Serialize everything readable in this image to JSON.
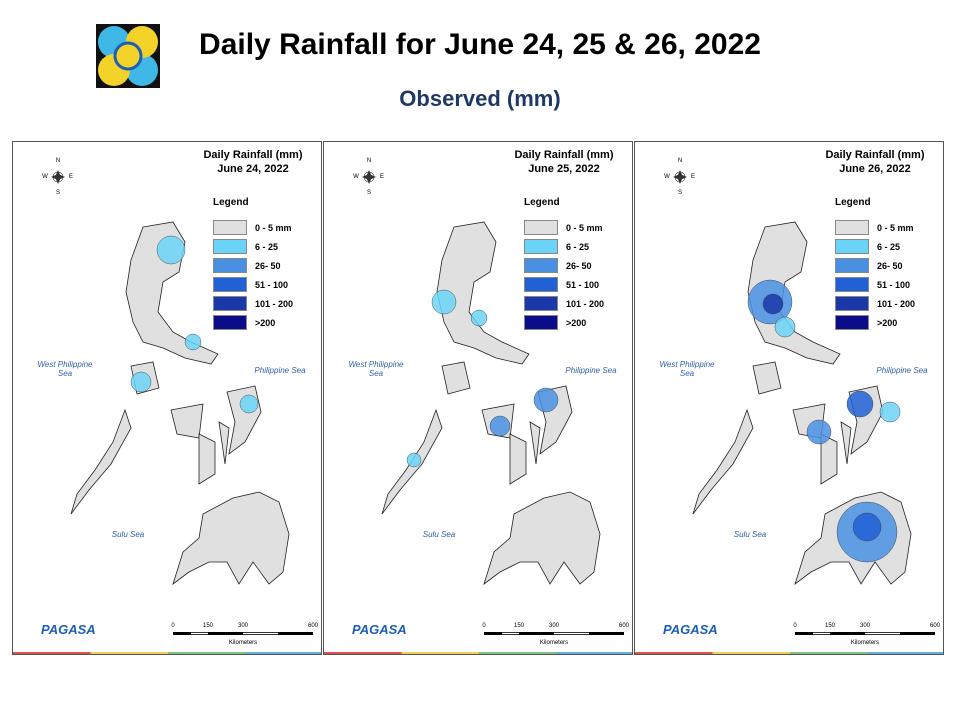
{
  "header": {
    "title": "Daily Rainfall for June 24, 25 & 26, 2022",
    "subtitle": "Observed (mm)"
  },
  "legend": {
    "title": "Legend",
    "items": [
      {
        "label": "0 - 5 mm",
        "color": "#e0e0e0"
      },
      {
        "label": "6 - 25",
        "color": "#6ad3f7"
      },
      {
        "label": "26- 50",
        "color": "#4a90e2"
      },
      {
        "label": "51 - 100",
        "color": "#2260d6"
      },
      {
        "label": "101 - 200",
        "color": "#1a38a8"
      },
      {
        "label": ">200",
        "color": "#0b0c8a"
      }
    ]
  },
  "panels": [
    {
      "title": "Daily Rainfall (mm)",
      "date": "June 24, 2022"
    },
    {
      "title": "Daily Rainfall (mm)",
      "date": "June 25, 2022"
    },
    {
      "title": "Daily Rainfall (mm)",
      "date": "June 26, 2022"
    }
  ],
  "seas": [
    "West Philippine Sea",
    "Philippine Sea",
    "Sulu Sea"
  ],
  "compass": [
    "N",
    "E",
    "S",
    "W"
  ],
  "scale": {
    "ticks": [
      0,
      150,
      300,
      600
    ],
    "unit": "Kilometers"
  },
  "agency": "PAGASA"
}
